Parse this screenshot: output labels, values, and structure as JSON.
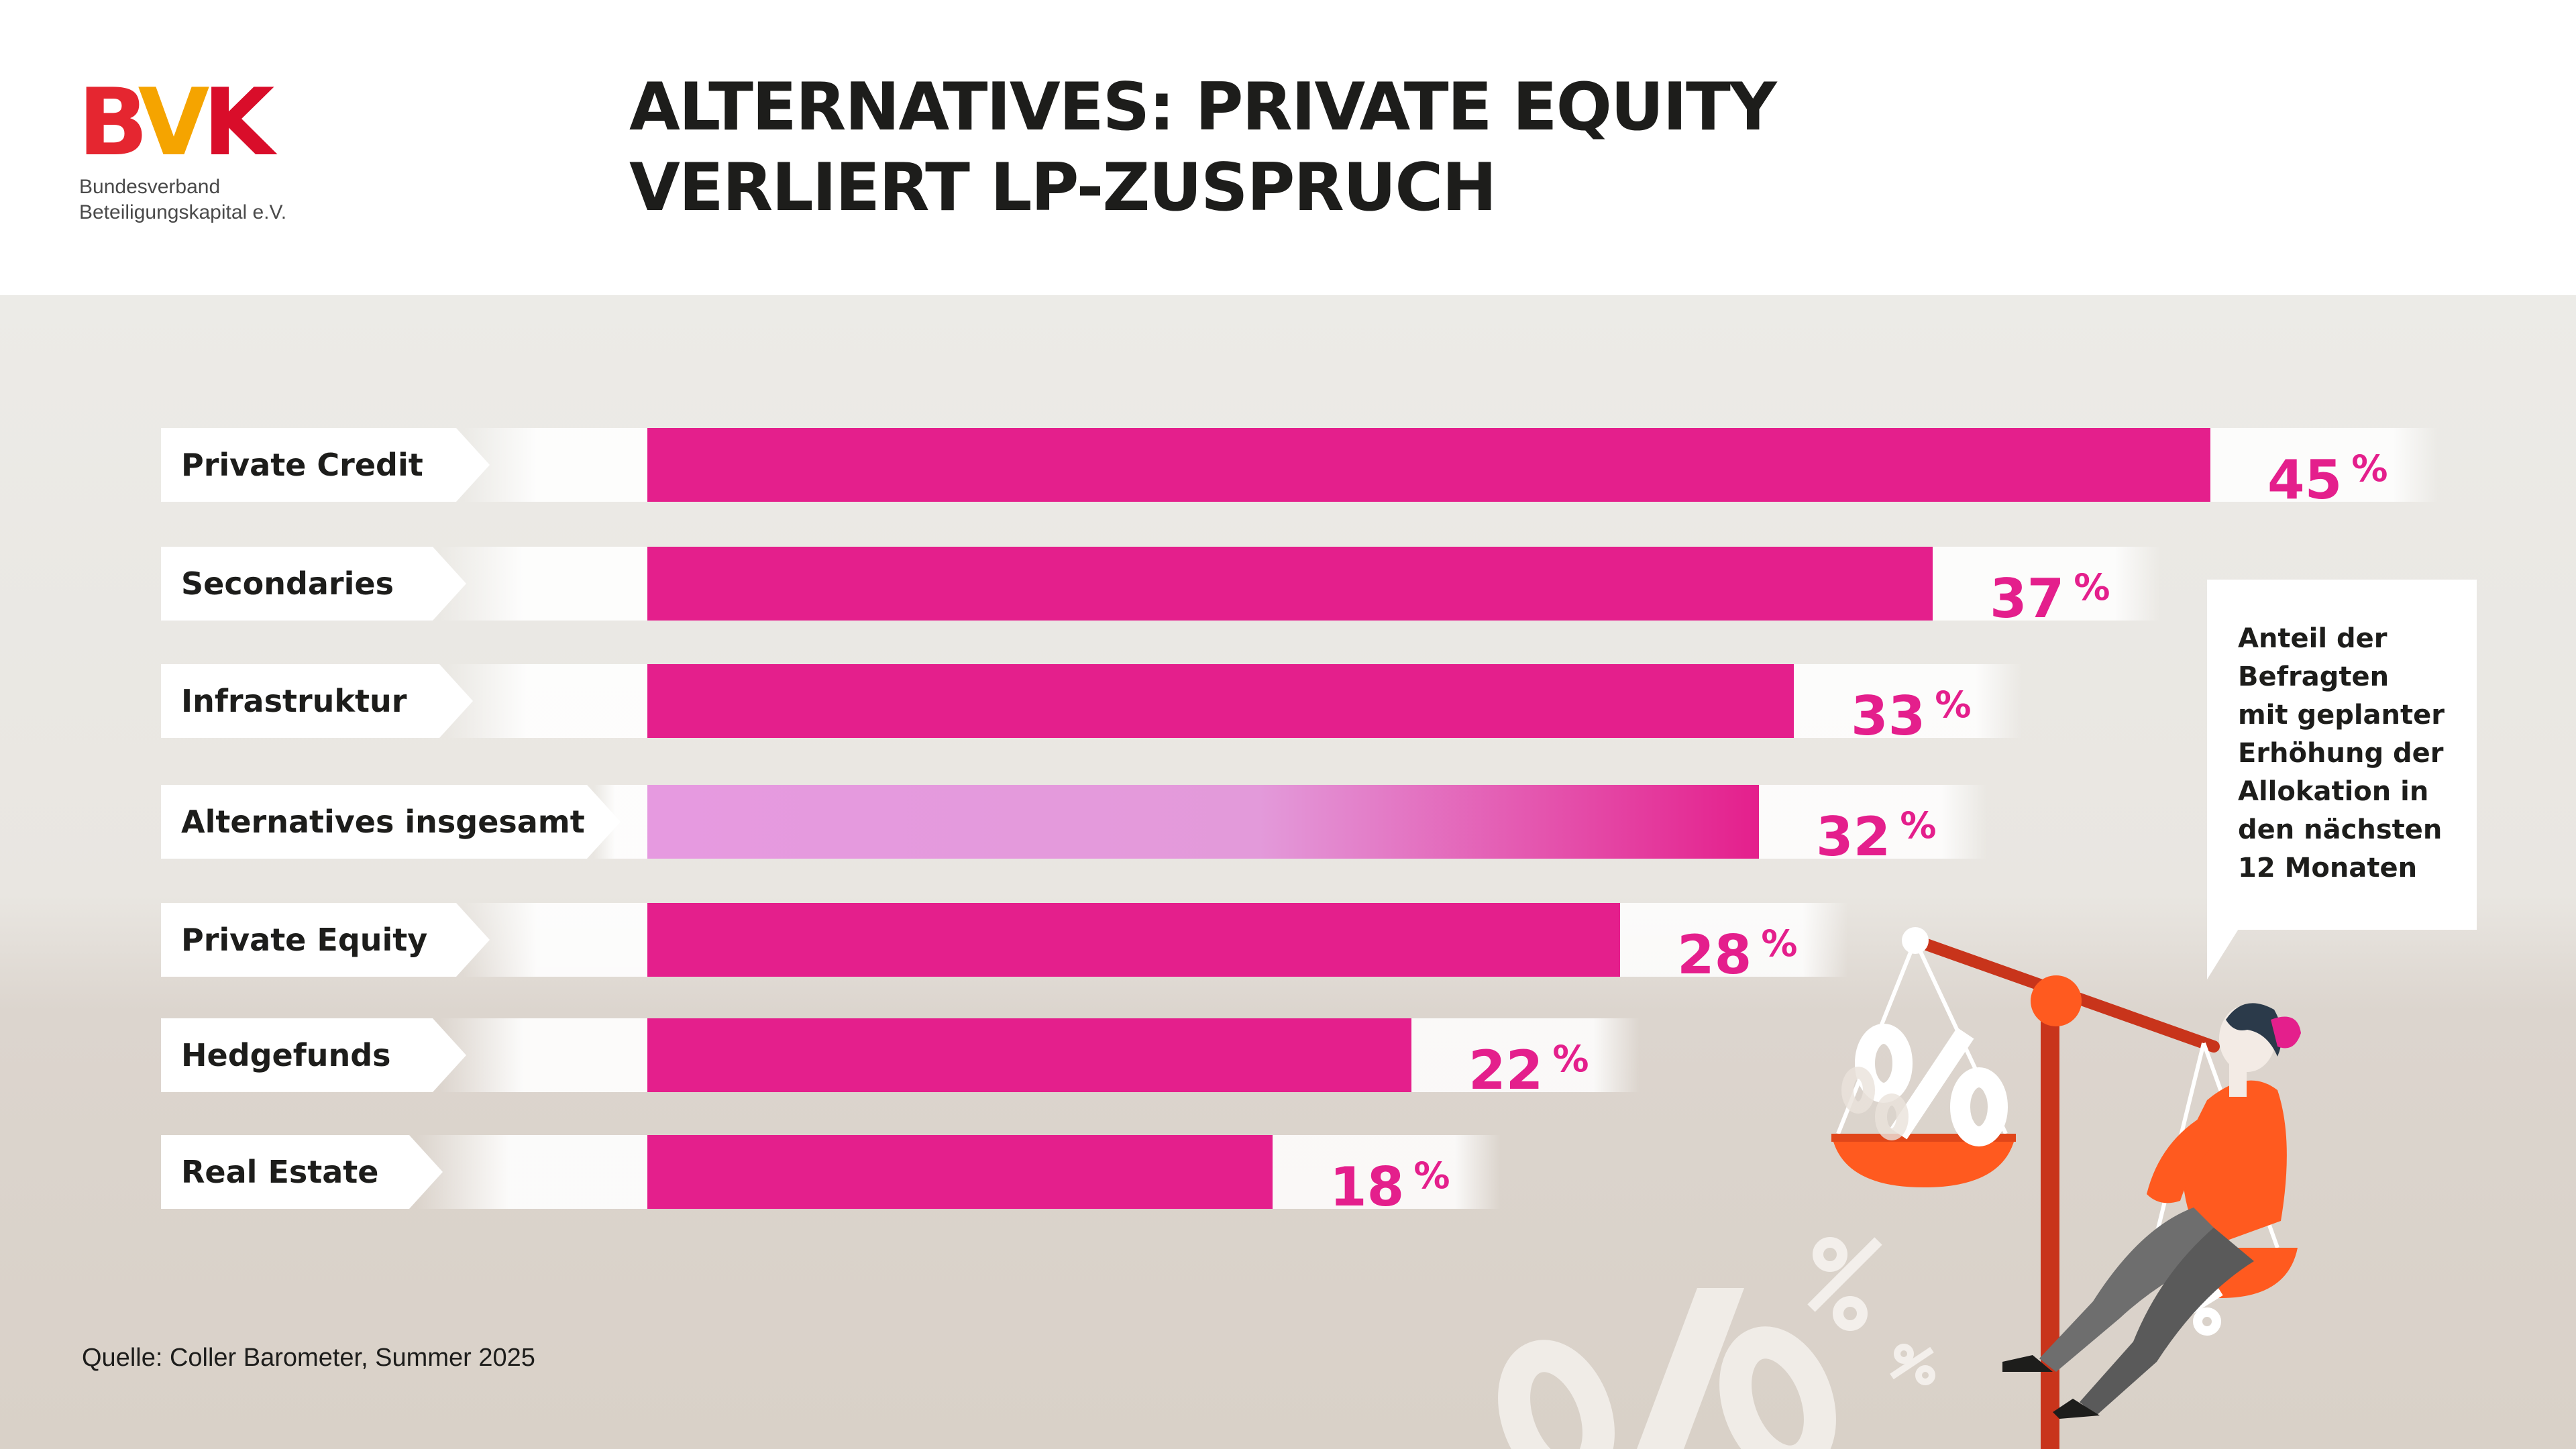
{
  "logo": {
    "mark_letters": [
      "B",
      "V",
      "K"
    ],
    "line1": "Bundesverband",
    "line2": "Beteiligungskapital e.V."
  },
  "title": {
    "line1": "ALTERNATIVES: PRIVATE EQUITY",
    "line2": "VERLIERT LP-ZUSPRUCH"
  },
  "callout": {
    "lines": [
      "Anteil der",
      "Befragten",
      "mit geplanter",
      "Erhöhung der",
      "Allokation in",
      "den nächsten",
      "12 Monaten"
    ]
  },
  "source": "Quelle: Coller Barometer, Summer 2025",
  "colors": {
    "bar": "#e41f8c",
    "bar_highlight_start": "#e69ae0",
    "value_text": "#e41f8c",
    "logo_red": "#e52630",
    "logo_orange": "#f5a400",
    "figure_orange": "#ff5a1f",
    "scale_red": "#c8341b"
  },
  "chart_data": {
    "type": "bar",
    "orientation": "horizontal",
    "categories": [
      "Private Credit",
      "Secondaries",
      "Infrastruktur",
      "Alternatives insgesamt",
      "Private Equity",
      "Hedgefunds",
      "Real Estate"
    ],
    "values": [
      45,
      37,
      33,
      32,
      28,
      22,
      18
    ],
    "value_labels": [
      "45",
      "37",
      "33",
      "32",
      "28",
      "22",
      "18"
    ],
    "unit": "%",
    "highlighted_category": "Alternatives insgesamt",
    "xlim": [
      0,
      45
    ],
    "grid": false
  },
  "illustration": {
    "icons": [
      "percent-sign-icon",
      "balance-scale-icon",
      "woman-on-scale-icon"
    ]
  }
}
